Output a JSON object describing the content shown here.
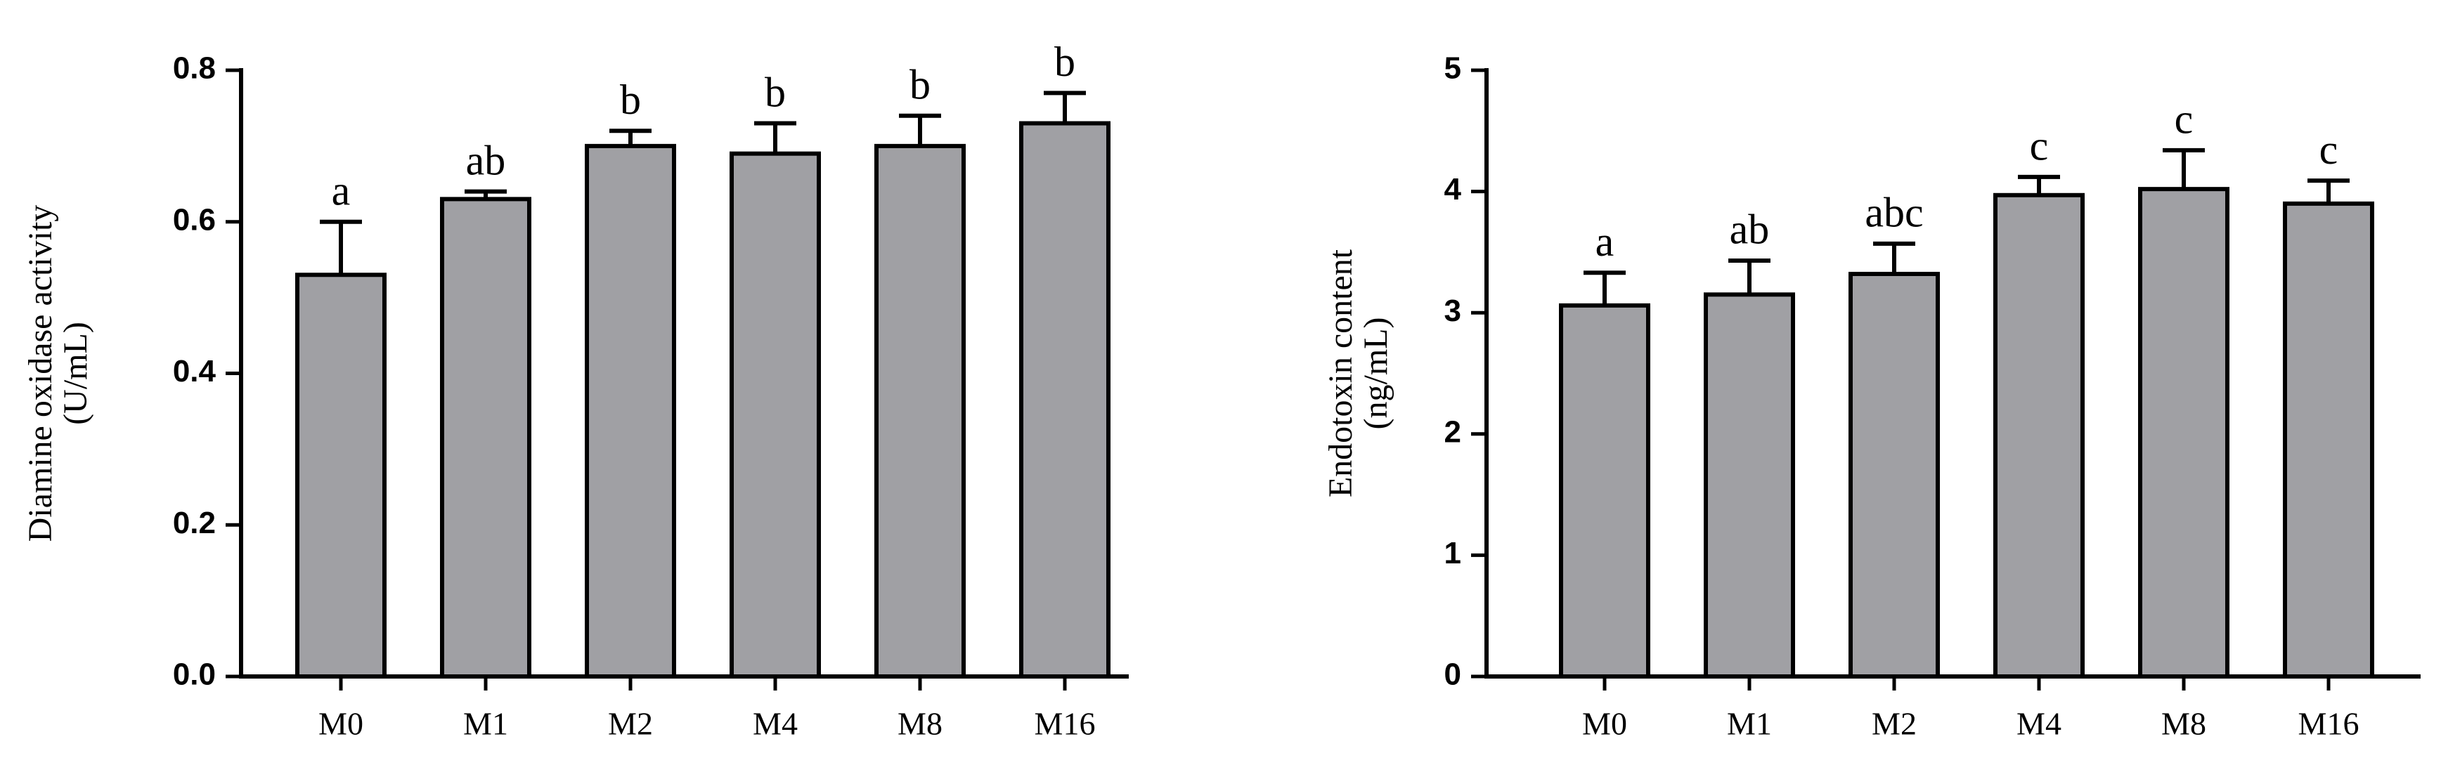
{
  "chart_data": [
    {
      "type": "bar",
      "y_label": [
        "Diamine oxidase activity",
        "(U/mL)"
      ],
      "categories": [
        "M0",
        "M1",
        "M2",
        "M4",
        "M8",
        "M16"
      ],
      "values": [
        0.53,
        0.63,
        0.7,
        0.69,
        0.7,
        0.73
      ],
      "errors": [
        0.07,
        0.01,
        0.02,
        0.04,
        0.04,
        0.04
      ],
      "annotations": [
        "a",
        "ab",
        "b",
        "b",
        "b",
        "b"
      ],
      "color": "#a0a0a4",
      "ylim": [
        0,
        0.8
      ],
      "yticks": [
        {
          "value": 0,
          "label": "0.0"
        },
        0.2,
        0.4,
        0.6,
        0.8
      ]
    },
    {
      "type": "bar",
      "y_label": [
        "Endotoxin content",
        "(ng/mL)"
      ],
      "categories": [
        "M0",
        "M1",
        "M2",
        "M4",
        "M8",
        "M16"
      ],
      "values": [
        3.06,
        3.15,
        3.32,
        3.97,
        4.02,
        3.9
      ],
      "errors": [
        0.27,
        0.28,
        0.25,
        0.15,
        0.32,
        0.19
      ],
      "annotations": [
        "a",
        "ab",
        "abc",
        "c",
        "c",
        "c"
      ],
      "color": "#a0a0a4",
      "ylim": [
        0,
        5
      ],
      "yticks": [
        0,
        1,
        2,
        3,
        4,
        5
      ]
    }
  ]
}
